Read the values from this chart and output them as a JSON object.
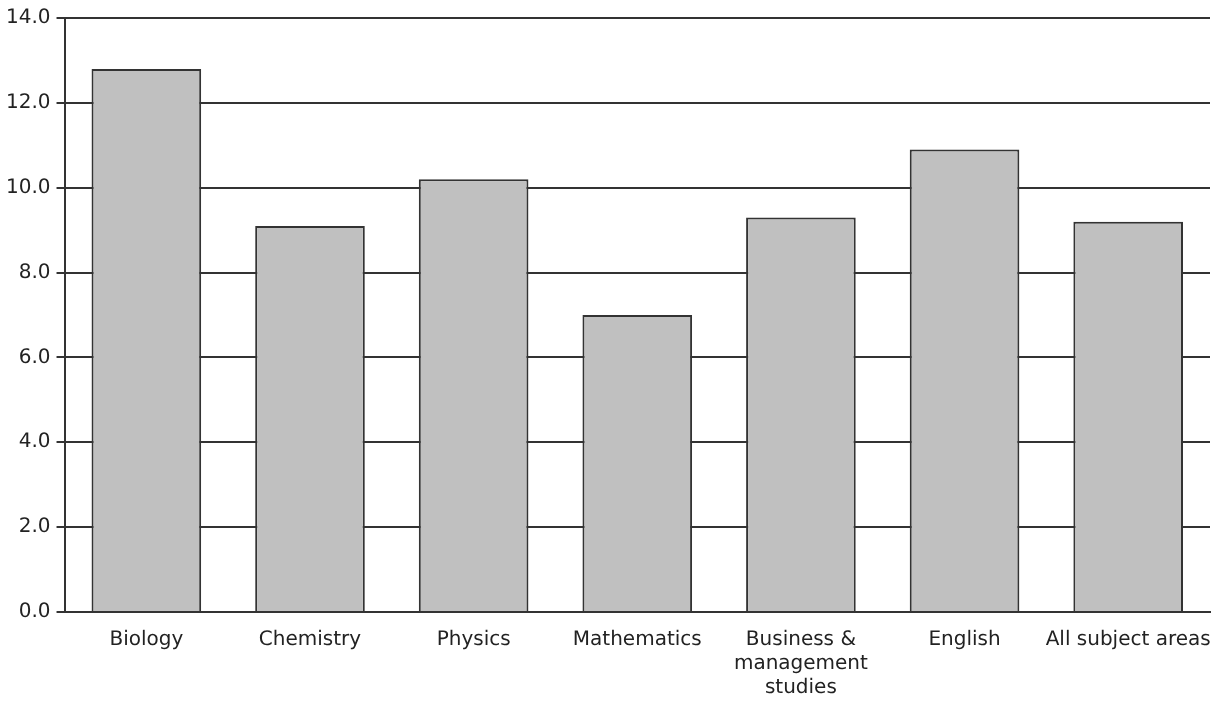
{
  "chart_data": {
    "type": "bar",
    "categories": [
      "Biology",
      "Chemistry",
      "Physics",
      "Mathematics",
      "Business & management studies",
      "English",
      "All subject areas"
    ],
    "values": [
      12.8,
      9.1,
      10.2,
      7.0,
      9.3,
      10.9,
      9.2
    ],
    "color": "#c0c0c0",
    "ylim": [
      0,
      14
    ],
    "yticks": [
      {
        "value": 0,
        "label": "0.0"
      },
      {
        "value": 2,
        "label": "2.0"
      },
      {
        "value": 4,
        "label": "4.0"
      },
      {
        "value": 6,
        "label": "6.0"
      },
      {
        "value": 8,
        "label": "8.0"
      },
      {
        "value": 10,
        "label": "10.0"
      },
      {
        "value": 12,
        "label": "12.0"
      },
      {
        "value": 14,
        "label": "14.0"
      }
    ],
    "grid": "y",
    "legend": false
  }
}
